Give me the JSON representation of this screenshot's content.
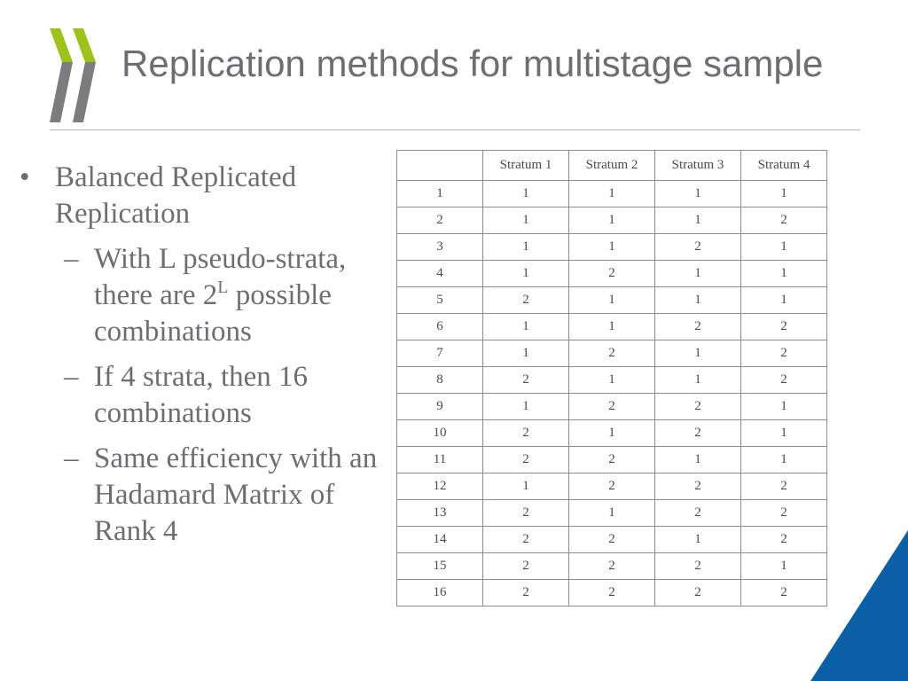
{
  "title": "Replication methods for multistage sample",
  "bullet": {
    "mark": "•",
    "text": "Balanced Replicated Replication",
    "sub_mark": "–",
    "sub1_part1": "With L pseudo-strata, there are 2",
    "sub1_sup": "L",
    "sub1_part2": " possible combinations",
    "sub2": "If 4 strata, then 16 combinations",
    "sub3": "Same efficiency with an Hadamard Matrix of Rank 4"
  },
  "table": {
    "headers": [
      "",
      "Stratum 1",
      "Stratum 2",
      "Stratum 3",
      "Stratum 4"
    ],
    "rows": [
      [
        "1",
        "1",
        "1",
        "1",
        "1"
      ],
      [
        "2",
        "1",
        "1",
        "1",
        "2"
      ],
      [
        "3",
        "1",
        "1",
        "2",
        "1"
      ],
      [
        "4",
        "1",
        "2",
        "1",
        "1"
      ],
      [
        "5",
        "2",
        "1",
        "1",
        "1"
      ],
      [
        "6",
        "1",
        "1",
        "2",
        "2"
      ],
      [
        "7",
        "1",
        "2",
        "1",
        "2"
      ],
      [
        "8",
        "2",
        "1",
        "1",
        "2"
      ],
      [
        "9",
        "1",
        "2",
        "2",
        "1"
      ],
      [
        "10",
        "2",
        "1",
        "2",
        "1"
      ],
      [
        "11",
        "2",
        "2",
        "1",
        "1"
      ],
      [
        "12",
        "1",
        "2",
        "2",
        "2"
      ],
      [
        "13",
        "2",
        "1",
        "2",
        "2"
      ],
      [
        "14",
        "2",
        "2",
        "1",
        "2"
      ],
      [
        "15",
        "2",
        "2",
        "2",
        "1"
      ],
      [
        "16",
        "2",
        "2",
        "2",
        "2"
      ]
    ]
  },
  "colors": {
    "logo_green": "#9bc31c",
    "logo_grey": "#7a7c80",
    "title_text": "#6d6e71",
    "corner_blue": "#0b5fa5"
  },
  "icons": {
    "logo": "oecd-chevrons-logo",
    "corner": "blue-triangle-decoration"
  }
}
